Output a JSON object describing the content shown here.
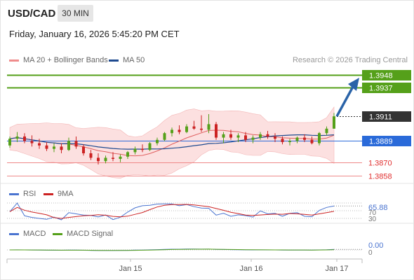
{
  "header": {
    "symbol": "USD/CAD",
    "timeframe": "30 MIN",
    "datetime": "Friday, January 16, 2026 5:45:20 PM CET"
  },
  "legend": {
    "bollinger": "MA 20 + Bollinger Bands",
    "ma50": "MA 50",
    "credit": "Research © 2026 Trading Central"
  },
  "levels": [
    {
      "label": "1.3948",
      "type": "resistance",
      "color": "#55a01a"
    },
    {
      "label": "1.3937",
      "type": "resistance",
      "color": "#55a01a"
    },
    {
      "label": "1.3911",
      "type": "last-price",
      "color": "#333333"
    },
    {
      "label": "1.3889",
      "type": "pivot",
      "color": "#2a6ad9"
    },
    {
      "label": "1.3870",
      "type": "support",
      "color": "#e03030"
    },
    {
      "label": "1.3858",
      "type": "support",
      "color": "#e03030"
    }
  ],
  "rsi_panel": {
    "rsi_label": "RSI",
    "ma_label": "9MA",
    "value": "65.88",
    "level_high": "70",
    "level_low": "30"
  },
  "macd_panel": {
    "macd_label": "MACD",
    "signal_label": "MACD Signal",
    "value": "0.00",
    "zero": "0"
  },
  "xaxis": {
    "ticks": [
      "Jan 15",
      "Jan 16",
      "Jan 17"
    ]
  },
  "colors": {
    "up": "#55a01a",
    "down": "#cc2222",
    "ma20": "#e06060",
    "ma50": "#1e4a8f",
    "band": "#fbd6d6",
    "arrow": "#2a63a8",
    "rsi": "#4a74d0",
    "rsi_ma": "#cc2222",
    "macd": "#4a74d0",
    "signal": "#55a01a"
  },
  "chart_data": {
    "type": "candlestick",
    "candles_approx": [
      [
        1.3885,
        1.3893,
        1.3883,
        1.3891
      ],
      [
        1.3891,
        1.3897,
        1.3888,
        1.3893
      ],
      [
        1.3893,
        1.3896,
        1.3887,
        1.3889
      ],
      [
        1.3889,
        1.3894,
        1.3884,
        1.3887
      ],
      [
        1.3887,
        1.3891,
        1.3882,
        1.3885
      ],
      [
        1.3885,
        1.3888,
        1.388,
        1.3882
      ],
      [
        1.3882,
        1.3887,
        1.3879,
        1.3884
      ],
      [
        1.3884,
        1.3887,
        1.3878,
        1.3881
      ],
      [
        1.3881,
        1.3892,
        1.388,
        1.3889
      ],
      [
        1.3889,
        1.3893,
        1.3882,
        1.3884
      ],
      [
        1.3884,
        1.3886,
        1.3876,
        1.3878
      ],
      [
        1.3878,
        1.3881,
        1.3872,
        1.3874
      ],
      [
        1.3874,
        1.3878,
        1.3868,
        1.3871
      ],
      [
        1.3871,
        1.3876,
        1.3869,
        1.3874
      ],
      [
        1.3874,
        1.3879,
        1.3871,
        1.3873
      ],
      [
        1.3873,
        1.3877,
        1.387,
        1.3875
      ],
      [
        1.3875,
        1.388,
        1.3873,
        1.3879
      ],
      [
        1.3879,
        1.3884,
        1.3877,
        1.3882
      ],
      [
        1.3882,
        1.3886,
        1.3879,
        1.3881
      ],
      [
        1.3881,
        1.3888,
        1.388,
        1.3887
      ],
      [
        1.3887,
        1.3892,
        1.3885,
        1.389
      ],
      [
        1.389,
        1.3897,
        1.3889,
        1.3896
      ],
      [
        1.3896,
        1.3901,
        1.3893,
        1.3899
      ],
      [
        1.3899,
        1.3903,
        1.3895,
        1.3897
      ],
      [
        1.3897,
        1.3904,
        1.3896,
        1.3902
      ],
      [
        1.3902,
        1.3907,
        1.3899,
        1.39
      ],
      [
        1.39,
        1.3912,
        1.3897,
        1.3899
      ],
      [
        1.3899,
        1.3913,
        1.3896,
        1.3904
      ],
      [
        1.3904,
        1.3906,
        1.389,
        1.3892
      ],
      [
        1.3892,
        1.3897,
        1.3887,
        1.3895
      ],
      [
        1.3895,
        1.3899,
        1.389,
        1.3892
      ],
      [
        1.3892,
        1.3896,
        1.3888,
        1.3894
      ],
      [
        1.3894,
        1.3897,
        1.3888,
        1.389
      ],
      [
        1.389,
        1.3894,
        1.3887,
        1.3892
      ],
      [
        1.3892,
        1.3897,
        1.389,
        1.3895
      ],
      [
        1.3895,
        1.3898,
        1.3891,
        1.3893
      ],
      [
        1.3893,
        1.3896,
        1.3888,
        1.3891
      ],
      [
        1.3891,
        1.3893,
        1.3886,
        1.3888
      ],
      [
        1.3888,
        1.3891,
        1.3885,
        1.3889
      ],
      [
        1.3889,
        1.3893,
        1.3887,
        1.3892
      ],
      [
        1.3892,
        1.3895,
        1.3888,
        1.389
      ],
      [
        1.389,
        1.3893,
        1.3886,
        1.3887
      ],
      [
        1.3887,
        1.3897,
        1.3885,
        1.3896
      ],
      [
        1.3896,
        1.3902,
        1.3894,
        1.39
      ],
      [
        1.39,
        1.3914,
        1.39,
        1.3911
      ]
    ],
    "projection": {
      "from": 1.3911,
      "to": 1.3948
    }
  }
}
